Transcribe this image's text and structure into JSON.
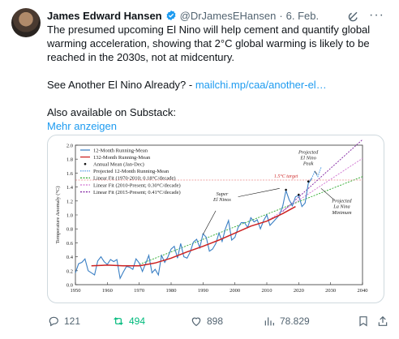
{
  "tweet": {
    "author_name": "James Edward Hansen",
    "handle": "@DrJamesEHansen",
    "separator": "·",
    "date": "6. Feb.",
    "more_label": "···",
    "text_line1": "The presumed upcoming El Nino will help cement and quantify global",
    "text_line2": "warming acceleration, showing that 2°C global warming is likely to be",
    "text_line3": "reached in the 2030s, not at midcentury.",
    "text_line4": "See Another El Nino Already? - ",
    "link": "mailchi.mp/caa/another-el…",
    "text_line5": "Also available on Substack:",
    "show_more": "Mehr anzeigen"
  },
  "actions": {
    "replies": "121",
    "reposts": "494",
    "likes": "898",
    "views": "78.829"
  },
  "colors": {
    "link": "#1d9bf0",
    "repost_active": "#00ba7c",
    "secondary_text": "#536471"
  },
  "chart_data": {
    "type": "line",
    "ylabel": "Temperature Anomaly (°C)",
    "xlim": [
      1950,
      2040
    ],
    "ylim": [
      0.0,
      2.0
    ],
    "x_ticks": [
      "1950",
      "1960",
      "1970",
      "1980",
      "1990",
      "2000",
      "2010",
      "2020",
      "2030",
      "2040"
    ],
    "y_ticks": [
      "0.0",
      "0.2",
      "0.4",
      "0.6",
      "0.8",
      "1.0",
      "1.2",
      "1.4",
      "1.6",
      "1.8",
      "2.0"
    ],
    "legend": [
      "12-Month Running-Mean",
      "132-Month Running-Mean",
      "Annual Mean (Jan-Dec)",
      "Projected 12-Month Running-Mean",
      "Linear Fit (1970-2010; 0.18°C/decade)",
      "Linear Fit (2010-Present; 0.30°C/decade)",
      "Linear Fit (2015-Present; 0.41°C/decade)"
    ],
    "annotations": {
      "target": "1.5°C target",
      "super_el_ninos": [
        "Super",
        "El Ninos"
      ],
      "projected_peak": [
        "Projected",
        "El Nino",
        "Peak"
      ],
      "projected_min": [
        "Projected",
        "La Nina",
        "Minimum"
      ]
    },
    "target_value": 1.5,
    "series": [
      {
        "name": "12-Month Running-Mean",
        "x": [
          1950,
          1951,
          1952,
          1953,
          1954,
          1955,
          1956,
          1957,
          1958,
          1959,
          1960,
          1961,
          1962,
          1963,
          1964,
          1965,
          1966,
          1967,
          1968,
          1969,
          1970,
          1971,
          1972,
          1973,
          1974,
          1975,
          1976,
          1977,
          1978,
          1979,
          1980,
          1981,
          1982,
          1983,
          1984,
          1985,
          1986,
          1987,
          1988,
          1989,
          1990,
          1991,
          1992,
          1993,
          1994,
          1995,
          1996,
          1997,
          1998,
          1999,
          2000,
          2001,
          2002,
          2003,
          2004,
          2005,
          2006,
          2007,
          2008,
          2009,
          2010,
          2011,
          2012,
          2013,
          2014,
          2015,
          2016,
          2017,
          2018,
          2019,
          2020,
          2021,
          2022,
          2023,
          2024
        ],
        "y": [
          0.17,
          0.3,
          0.32,
          0.37,
          0.2,
          0.17,
          0.14,
          0.34,
          0.4,
          0.33,
          0.29,
          0.36,
          0.33,
          0.36,
          0.09,
          0.18,
          0.26,
          0.25,
          0.22,
          0.37,
          0.31,
          0.19,
          0.3,
          0.42,
          0.17,
          0.22,
          0.14,
          0.42,
          0.32,
          0.4,
          0.51,
          0.55,
          0.38,
          0.59,
          0.4,
          0.38,
          0.47,
          0.61,
          0.65,
          0.53,
          0.73,
          0.68,
          0.48,
          0.51,
          0.59,
          0.74,
          0.62,
          0.8,
          0.92,
          0.64,
          0.68,
          0.82,
          0.89,
          0.89,
          0.82,
          0.96,
          0.9,
          0.93,
          0.8,
          0.92,
          1.0,
          0.85,
          0.9,
          0.95,
          1.0,
          1.13,
          1.35,
          1.22,
          1.13,
          1.26,
          1.28,
          1.12,
          1.17,
          1.45,
          1.52
        ]
      },
      {
        "name": "132-Month Running-Mean",
        "x": [
          1955,
          1960,
          1965,
          1970,
          1975,
          1980,
          1985,
          1990,
          1995,
          2000,
          2005,
          2010,
          2015,
          2019
        ],
        "y": [
          0.27,
          0.28,
          0.27,
          0.27,
          0.31,
          0.38,
          0.47,
          0.55,
          0.64,
          0.74,
          0.84,
          0.91,
          1.02,
          1.12
        ]
      },
      {
        "name": "Projected 12-Month Running-Mean",
        "x": [
          2024,
          2025,
          2026,
          2027
        ],
        "y": [
          1.52,
          1.62,
          1.55,
          1.68
        ]
      },
      {
        "name": "Linear Fit (1970-2010; 0.18°C/decade)",
        "x": [
          1970,
          2040
        ],
        "y": [
          0.29,
          1.55
        ]
      },
      {
        "name": "Linear Fit (2010-Present; 0.30°C/decade)",
        "x": [
          2010,
          2040
        ],
        "y": [
          0.91,
          1.81
        ]
      },
      {
        "name": "Linear Fit (2015-Present; 0.41°C/decade)",
        "x": [
          2015,
          2040
        ],
        "y": [
          1.05,
          2.08
        ]
      }
    ],
    "annual_means": {
      "x": [
        2016,
        2020,
        2023
      ],
      "y": [
        1.36,
        1.29,
        1.48
      ]
    }
  }
}
